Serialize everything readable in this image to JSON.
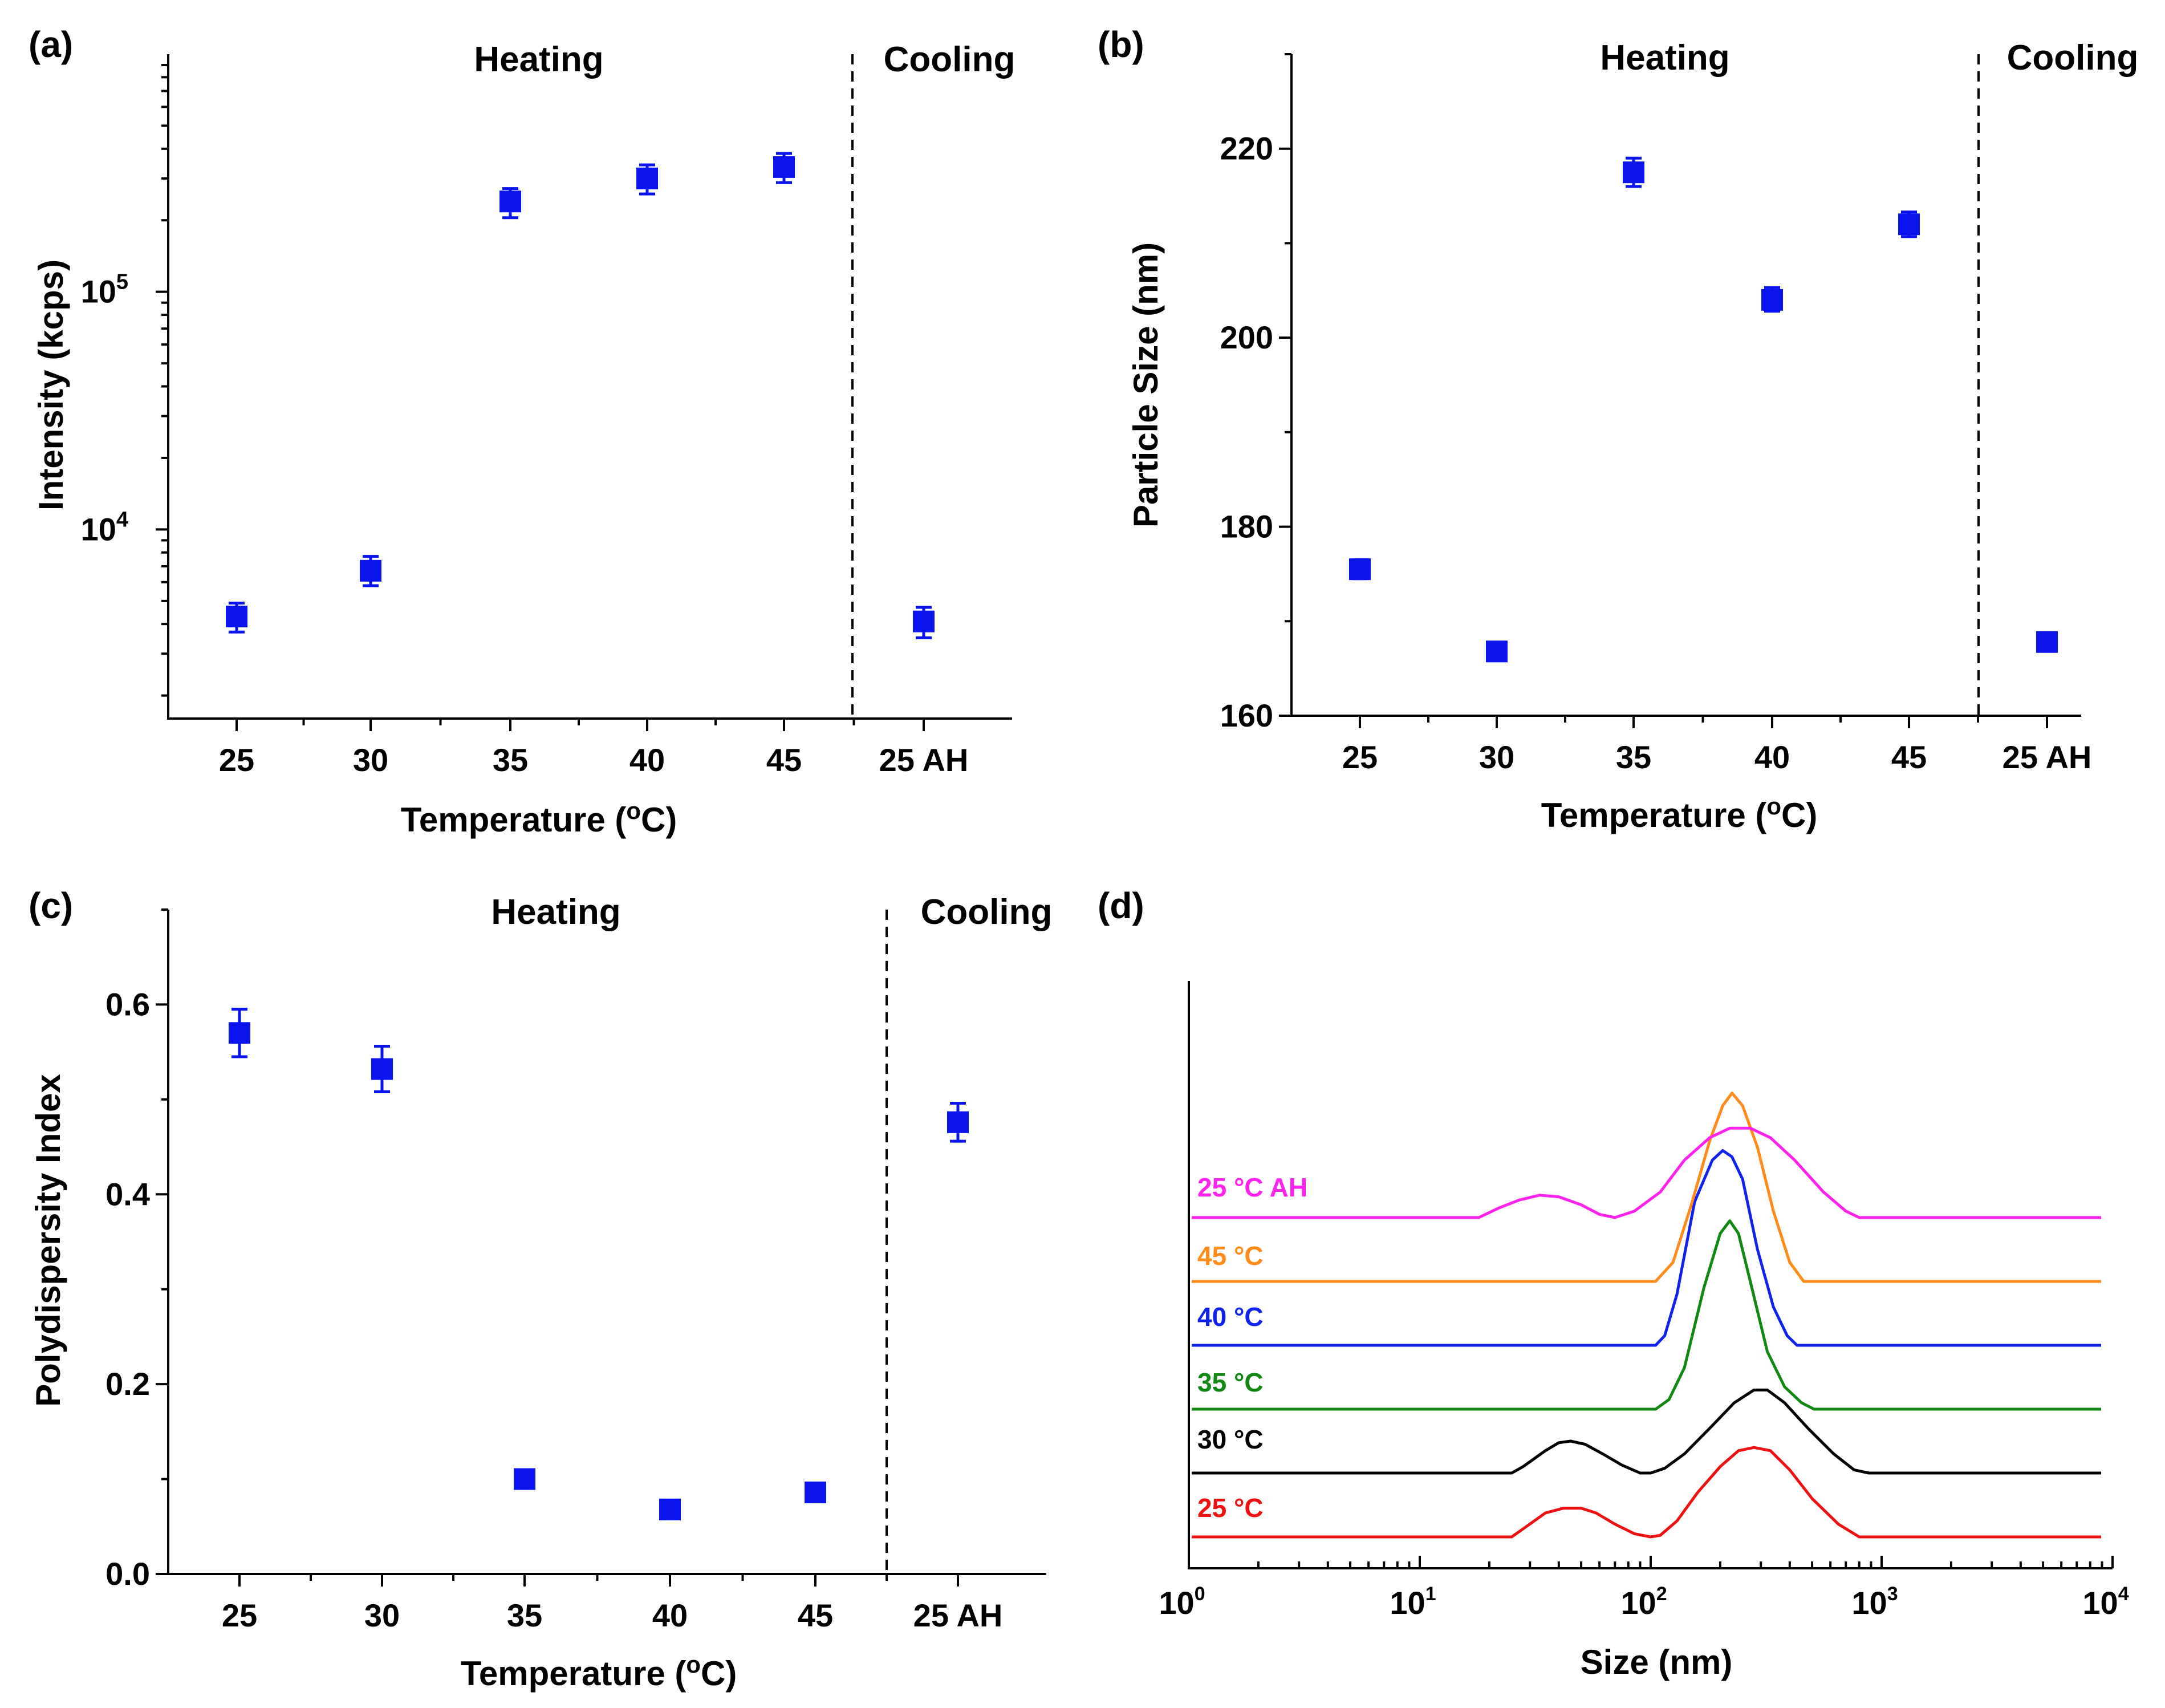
{
  "chart_data": [
    {
      "id": "a",
      "panel_label": "(a)",
      "type": "scatter",
      "title": "",
      "categories": [
        "25",
        "30",
        "35",
        "40",
        "45",
        "25 AH"
      ],
      "values": [
        4300,
        6700,
        240000,
        300000,
        335000,
        4100
      ],
      "err": [
        [
          3700,
          4900
        ],
        [
          5800,
          7700
        ],
        [
          205000,
          272000
        ],
        [
          258000,
          342000
        ],
        [
          288000,
          382000
        ],
        [
          3500,
          4700
        ]
      ],
      "xlabel": "Temperature (",
      "xlabel_sup": "o",
      "xlabel_end": "C)",
      "ylabel": "Intensity (kcps)",
      "yscale": "log",
      "ylim": [
        1600,
        1000000
      ],
      "yticks": [
        {
          "base": "10",
          "exp": "4",
          "value": 10000
        },
        {
          "base": "10",
          "exp": "5",
          "value": 100000
        }
      ],
      "regions": [
        "Heating",
        "Cooling"
      ]
    },
    {
      "id": "b",
      "panel_label": "(b)",
      "type": "scatter",
      "title": "",
      "categories": [
        "25",
        "30",
        "35",
        "40",
        "45",
        "25 AH"
      ],
      "values": [
        175.5,
        166.8,
        217.5,
        204.0,
        212.0,
        167.8
      ],
      "err": [
        [
          174.5,
          176.5
        ],
        [
          166.0,
          167.6
        ],
        [
          216.0,
          219.0
        ],
        [
          202.8,
          205.3
        ],
        [
          210.7,
          213.3
        ],
        [
          167.0,
          168.6
        ]
      ],
      "xlabel": "Temperature (",
      "xlabel_sup": "o",
      "xlabel_end": "C)",
      "ylabel": "Particle Size (nm)",
      "yscale": "linear",
      "ylim": [
        160,
        230
      ],
      "yticks": [
        {
          "label": "160",
          "value": 160
        },
        {
          "label": "180",
          "value": 180
        },
        {
          "label": "200",
          "value": 200
        },
        {
          "label": "220",
          "value": 220
        }
      ],
      "regions": [
        "Heating",
        "Cooling"
      ]
    },
    {
      "id": "c",
      "panel_label": "(c)",
      "type": "scatter",
      "title": "",
      "categories": [
        "25",
        "30",
        "35",
        "40",
        "45",
        "25 AH"
      ],
      "values": [
        0.57,
        0.532,
        0.1,
        0.068,
        0.086,
        0.476
      ],
      "err": [
        [
          0.545,
          0.595
        ],
        [
          0.508,
          0.556
        ],
        [
          0.095,
          0.105
        ],
        [
          0.063,
          0.073
        ],
        [
          0.081,
          0.091
        ],
        [
          0.456,
          0.496
        ]
      ],
      "xlabel": "Temperature (",
      "xlabel_sup": "o",
      "xlabel_end": "C)",
      "ylabel": "Polydispersity Index",
      "yscale": "linear",
      "ylim": [
        0,
        0.7
      ],
      "yticks": [
        {
          "label": "0.0",
          "value": 0
        },
        {
          "label": "0.2",
          "value": 0.2
        },
        {
          "label": "0.4",
          "value": 0.4
        },
        {
          "label": "0.6",
          "value": 0.6
        }
      ],
      "regions": [
        "Heating",
        "Cooling"
      ]
    },
    {
      "id": "d",
      "panel_label": "(d)",
      "type": "line",
      "title": "",
      "xlabel": "Size (nm)",
      "ylabel": "",
      "xscale": "log",
      "xlim": [
        1,
        10000
      ],
      "xticks": [
        {
          "base": "10",
          "exp": "0",
          "value": 1
        },
        {
          "base": "10",
          "exp": "1",
          "value": 10
        },
        {
          "base": "10",
          "exp": "2",
          "value": 100
        },
        {
          "base": "10",
          "exp": "3",
          "value": 1000
        },
        {
          "base": "10",
          "exp": "4",
          "value": 10000
        }
      ],
      "series": [
        {
          "name": "25 °C",
          "color": "#ee1111",
          "offset": 0,
          "points": [
            [
              25,
              0
            ],
            [
              28,
              2.5
            ],
            [
              35,
              7.5
            ],
            [
              42,
              9
            ],
            [
              50,
              9
            ],
            [
              58,
              7.5
            ],
            [
              70,
              4
            ],
            [
              85,
              1
            ],
            [
              100,
              0
            ],
            [
              110,
              0.5
            ],
            [
              130,
              5
            ],
            [
              160,
              14
            ],
            [
              200,
              22
            ],
            [
              240,
              27
            ],
            [
              280,
              28
            ],
            [
              330,
              27
            ],
            [
              400,
              21
            ],
            [
              500,
              12
            ],
            [
              650,
              4
            ],
            [
              800,
              0
            ]
          ]
        },
        {
          "name": "30 °C",
          "color": "#000000",
          "offset": 10,
          "points": [
            [
              25,
              0
            ],
            [
              28,
              2
            ],
            [
              35,
              7
            ],
            [
              40,
              9.5
            ],
            [
              45,
              10
            ],
            [
              52,
              9
            ],
            [
              62,
              6
            ],
            [
              75,
              2.5
            ],
            [
              90,
              0
            ],
            [
              100,
              0
            ],
            [
              115,
              1.5
            ],
            [
              140,
              6
            ],
            [
              180,
              14
            ],
            [
              230,
              22
            ],
            [
              280,
              26
            ],
            [
              320,
              26
            ],
            [
              380,
              22
            ],
            [
              480,
              14
            ],
            [
              620,
              6
            ],
            [
              760,
              1
            ],
            [
              880,
              0
            ]
          ]
        },
        {
          "name": "35 °C",
          "color": "#118811",
          "offset": 20,
          "points": [
            [
              105,
              0
            ],
            [
              120,
              3
            ],
            [
              140,
              13
            ],
            [
              170,
              38
            ],
            [
              200,
              55
            ],
            [
              220,
              59
            ],
            [
              240,
              55
            ],
            [
              270,
              40
            ],
            [
              320,
              18
            ],
            [
              380,
              7
            ],
            [
              450,
              2
            ],
            [
              510,
              0
            ]
          ]
        },
        {
          "name": "40 °C",
          "color": "#1022ee",
          "offset": 30,
          "points": [
            [
              105,
              0
            ],
            [
              115,
              3
            ],
            [
              130,
              16
            ],
            [
              155,
              45
            ],
            [
              185,
              58
            ],
            [
              205,
              61
            ],
            [
              225,
              59
            ],
            [
              250,
              52
            ],
            [
              290,
              30
            ],
            [
              340,
              12
            ],
            [
              390,
              3
            ],
            [
              430,
              0
            ]
          ]
        },
        {
          "name": "45 °C",
          "color": "#ff8c1a",
          "offset": 40,
          "points": [
            [
              105,
              0
            ],
            [
              125,
              6
            ],
            [
              150,
              24
            ],
            [
              180,
              44
            ],
            [
              205,
              55
            ],
            [
              225,
              59
            ],
            [
              250,
              55
            ],
            [
              290,
              42
            ],
            [
              340,
              22
            ],
            [
              400,
              6
            ],
            [
              460,
              0
            ]
          ]
        },
        {
          "name": "25 °C AH",
          "color": "#ff22ee",
          "offset": 50,
          "points": [
            [
              18,
              0
            ],
            [
              22,
              3
            ],
            [
              27,
              5.5
            ],
            [
              33,
              7
            ],
            [
              40,
              6.5
            ],
            [
              50,
              4
            ],
            [
              60,
              1
            ],
            [
              70,
              0
            ],
            [
              85,
              2
            ],
            [
              110,
              8
            ],
            [
              140,
              18
            ],
            [
              180,
              25
            ],
            [
              220,
              28
            ],
            [
              270,
              28
            ],
            [
              330,
              25
            ],
            [
              420,
              18
            ],
            [
              560,
              8
            ],
            [
              700,
              2
            ],
            [
              800,
              0
            ]
          ]
        }
      ]
    }
  ]
}
